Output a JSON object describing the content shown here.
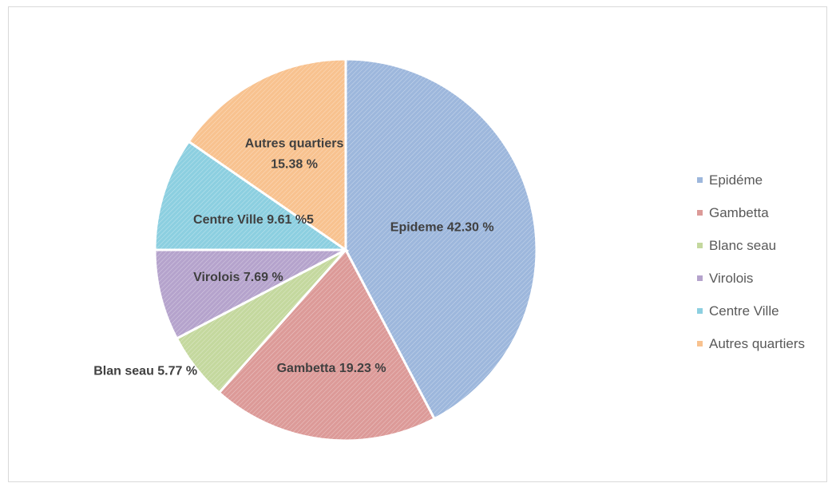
{
  "chart_data": {
    "type": "pie",
    "title": "",
    "slices": [
      {
        "legend": "Epidéme",
        "label": "Epideme 42.30 %",
        "value": 42.3,
        "color": "#9db7dc"
      },
      {
        "legend": "Gambetta",
        "label": "Gambetta 19.23 %",
        "value": 19.23,
        "color": "#dc9a98"
      },
      {
        "legend": "Blanc seau",
        "label": "Blan seau 5.77 %",
        "value": 5.77,
        "color": "#c4d89e"
      },
      {
        "legend": "Virolois",
        "label": "Virolois 7.69 %",
        "value": 7.69,
        "color": "#b5a3cc"
      },
      {
        "legend": "Centre Ville",
        "label": "Centre Ville 9.61 %5",
        "value": 9.61,
        "color": "#8ccfe0"
      },
      {
        "legend": "Autres quartiers",
        "label": "Autres quartiers 15.38 %",
        "value": 15.38,
        "color": "#f8c28f"
      }
    ],
    "legend_position": "right"
  }
}
